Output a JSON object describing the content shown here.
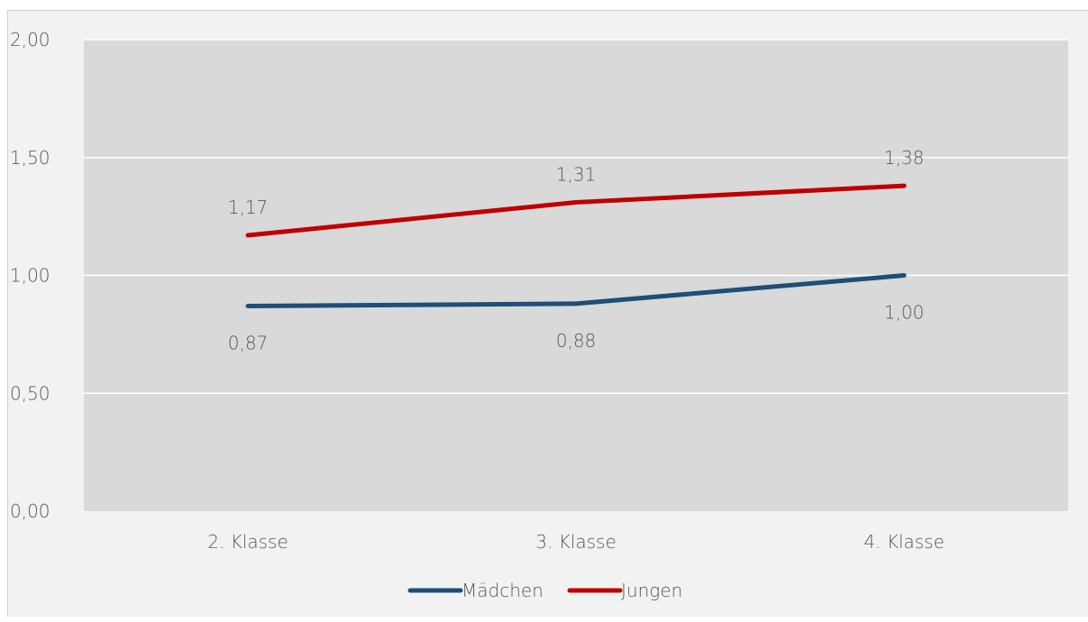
{
  "chart_data": {
    "type": "line",
    "categories": [
      "2. Klasse",
      "3. Klasse",
      "4. Klasse"
    ],
    "series": [
      {
        "name": "Mädchen",
        "values": [
          0.87,
          0.88,
          1.0
        ],
        "labels": [
          "0,87",
          "0,88",
          "1,00"
        ],
        "color": "#1f4e79"
      },
      {
        "name": "Jungen",
        "values": [
          1.17,
          1.31,
          1.38
        ],
        "labels": [
          "1,17",
          "1,31",
          "1,38"
        ],
        "color": "#c00000"
      }
    ],
    "ylim": [
      0,
      2
    ],
    "yticks": [
      0,
      0.5,
      1,
      1.5,
      2
    ],
    "ytick_labels": [
      "0,00",
      "0,50",
      "1,00",
      "1,50",
      "2,00"
    ],
    "grid": true,
    "plot_background": "#d9d9d9",
    "chart_background": "#f2f2f2",
    "legend_position": "bottom"
  }
}
